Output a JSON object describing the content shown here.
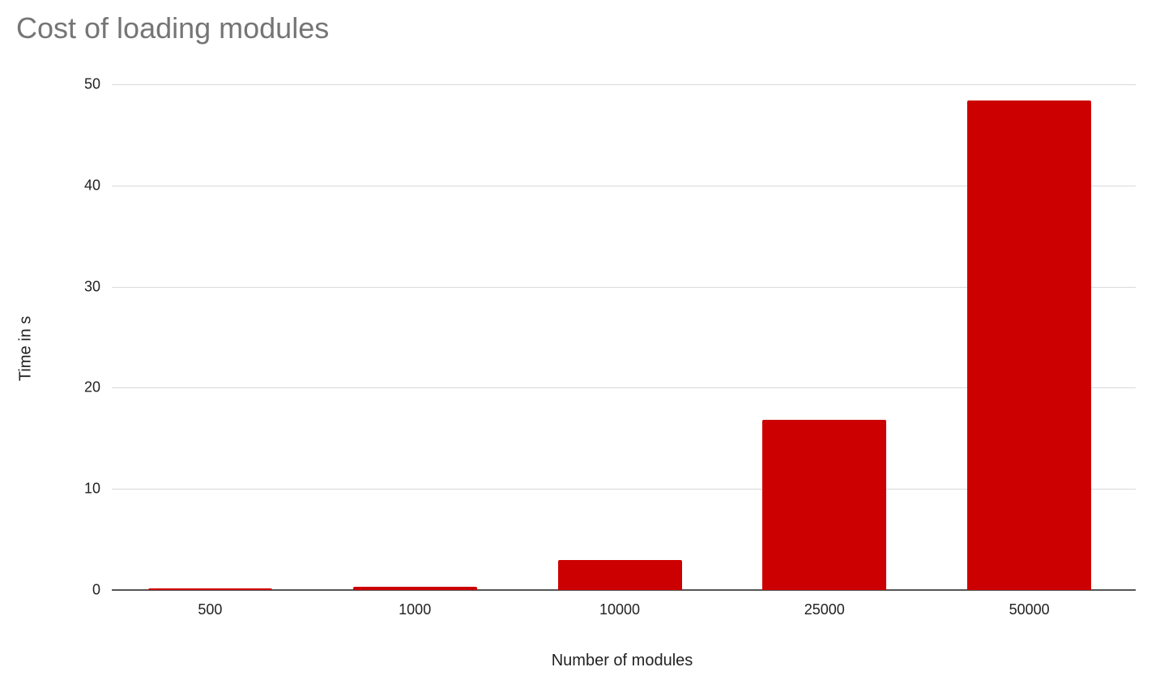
{
  "chart_data": {
    "type": "bar",
    "title": "Cost of loading modules",
    "xlabel": "Number of modules",
    "ylabel": "Time in s",
    "categories": [
      "500",
      "1000",
      "10000",
      "25000",
      "50000"
    ],
    "values": [
      0.2,
      0.35,
      3.0,
      16.8,
      48.4
    ],
    "ylim": [
      0,
      50
    ],
    "yticks": [
      "0",
      "10",
      "20",
      "30",
      "40",
      "50"
    ],
    "grid": true,
    "legend": "none",
    "bar_color": "#cc0000"
  }
}
